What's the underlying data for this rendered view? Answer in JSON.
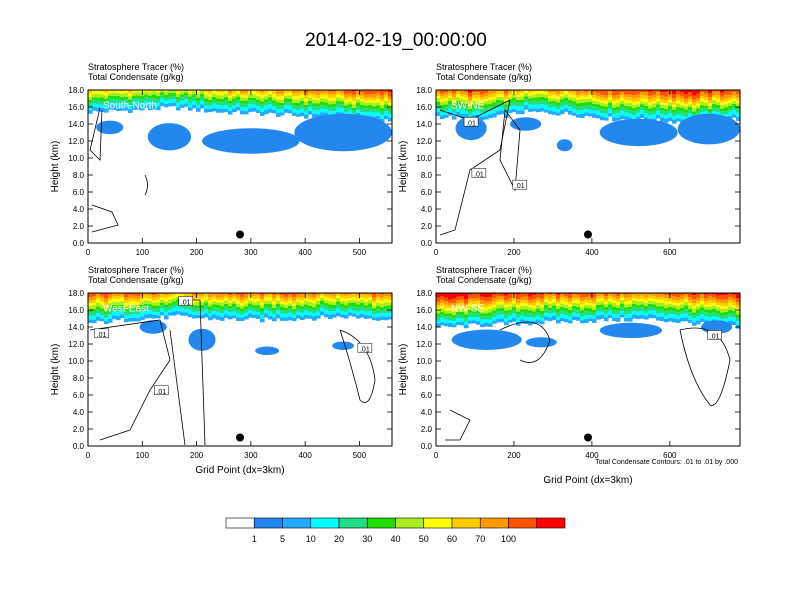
{
  "figure": {
    "title": "2014-02-19_00:00:00",
    "xlabel": "Grid Point (dx=3km)",
    "ylabel": "Height (km)",
    "contour_note": "Total Condensate Contours: .01 to .01 by .000",
    "contour_label": ".01"
  },
  "colorbar": {
    "labels": [
      "1",
      "5",
      "10",
      "20",
      "30",
      "40",
      "50",
      "60",
      "70",
      "100"
    ],
    "colors": [
      "#ffffff",
      "#2288ee",
      "#22aaff",
      "#00ffff",
      "#22dd88",
      "#22dd00",
      "#aaee22",
      "#ffff00",
      "#ffcc00",
      "#ff9900",
      "#ff5500",
      "#ff0000"
    ]
  },
  "chart_data": [
    {
      "type": "heatmap",
      "panel": "South-North",
      "label1": "Stratosphere Tracer   (%)",
      "label2": "Total Condensate   (g/kg)",
      "xlim": [
        0,
        560
      ],
      "ylim": [
        0,
        18
      ],
      "xticks": [
        0,
        100,
        200,
        300,
        400,
        500
      ],
      "yticks": [
        0,
        2,
        4,
        6,
        8,
        10,
        12,
        14,
        16,
        18
      ],
      "ytick_labels": [
        "0.0",
        "2.0",
        "4.0",
        "6.0",
        "8.0",
        "10.0",
        "12.0",
        "14.0",
        "16.0",
        "18.0"
      ],
      "tropopause_km": [
        16.0,
        16.2,
        16.5,
        16.0,
        15.8,
        15.5,
        15.3,
        15.0
      ],
      "marker": {
        "x": 280,
        "y_km": 1.0
      },
      "contour_labels": []
    },
    {
      "type": "heatmap",
      "panel": "SW-NE",
      "label1": "Stratosphere Tracer   (%)",
      "label2": "Total Condensate   (g/kg)",
      "xlim": [
        0,
        780
      ],
      "ylim": [
        0,
        18
      ],
      "xticks": [
        0,
        200,
        400,
        600
      ],
      "yticks": [
        0,
        2,
        4,
        6,
        8,
        10,
        12,
        14,
        16,
        18
      ],
      "ytick_labels": [
        "0.0",
        "2.0",
        "4.0",
        "6.0",
        "8.0",
        "10.0",
        "12.0",
        "14.0",
        "16.0",
        "18.0"
      ],
      "tropopause_km": [
        15.5,
        15.0,
        16.0,
        15.8,
        15.2,
        15.0,
        14.8,
        15.2
      ],
      "marker": {
        "x": 390,
        "y_km": 1.0
      },
      "contour_labels": [
        {
          "x": 90,
          "y_km": 14.2
        },
        {
          "x": 110,
          "y_km": 8.2
        },
        {
          "x": 215,
          "y_km": 6.8
        }
      ]
    },
    {
      "type": "heatmap",
      "panel": "West-East",
      "label1": "Stratosphere Tracer   (%)",
      "label2": "Total Condensate   (g/kg)",
      "xlim": [
        0,
        560
      ],
      "ylim": [
        0,
        18
      ],
      "xticks": [
        0,
        100,
        200,
        300,
        400,
        500
      ],
      "yticks": [
        0,
        2,
        4,
        6,
        8,
        10,
        12,
        14,
        16,
        18
      ],
      "ytick_labels": [
        "0.0",
        "2.0",
        "4.0",
        "6.0",
        "8.0",
        "10.0",
        "12.0",
        "14.0",
        "16.0",
        "18.0"
      ],
      "tropopause_km": [
        15.0,
        15.5,
        15.8,
        15.5,
        15.4,
        15.6,
        15.8,
        15.5
      ],
      "marker": {
        "x": 280,
        "y_km": 1.0
      },
      "contour_labels": [
        {
          "x": 25,
          "y_km": 13.2
        },
        {
          "x": 135,
          "y_km": 6.5
        },
        {
          "x": 180,
          "y_km": 17.0
        },
        {
          "x": 510,
          "y_km": 11.5
        }
      ]
    },
    {
      "type": "heatmap",
      "panel": "NW-SE",
      "label1": "Stratosphere Tracer   (%)",
      "label2": "Total Condensate   (g/kg)",
      "xlim": [
        0,
        780
      ],
      "ylim": [
        0,
        18
      ],
      "xticks": [
        0,
        200,
        400,
        600
      ],
      "yticks": [
        0,
        2,
        4,
        6,
        8,
        10,
        12,
        14,
        16,
        18
      ],
      "ytick_labels": [
        "0.0",
        "2.0",
        "4.0",
        "6.0",
        "8.0",
        "10.0",
        "12.0",
        "14.0",
        "16.0",
        "18.0"
      ],
      "tropopause_km": [
        14.5,
        14.8,
        15.0,
        15.2,
        15.4,
        15.5,
        15.0,
        14.5
      ],
      "marker": {
        "x": 390,
        "y_km": 1.0
      },
      "contour_labels": [
        {
          "x": 715,
          "y_km": 13.0
        }
      ]
    }
  ]
}
